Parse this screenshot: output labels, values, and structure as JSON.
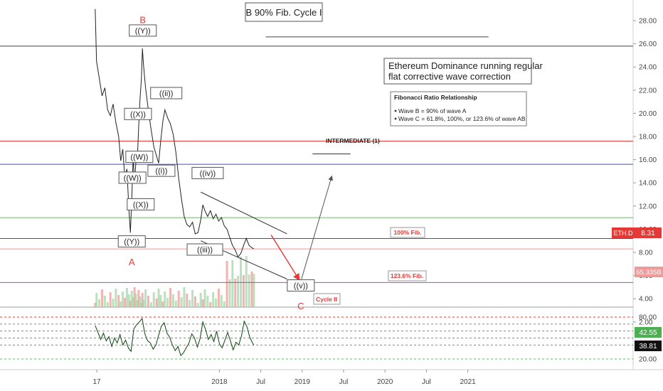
{
  "chart_data": {
    "type": "line",
    "symbol": "ETH.D",
    "title": "B 90%  Fib. Cycle I",
    "annotation_main": [
      "Ethereum Dominance running regular",
      "flat corrective wave correction"
    ],
    "fib_box": {
      "title": "Fibonacci Ratio Relationship",
      "items": [
        "Wave B = 90% of wave A",
        "Wave C = 61.8%, 100%, or 123.6% of wave AB"
      ]
    },
    "intermediate_label": "INTERMEDIATE (1)",
    "fib100_label": "100% Fib.",
    "fib1236_label": "123.6% Fib.",
    "cycle_label": "Cycle II",
    "price_axis": {
      "ticks": [
        "28.00",
        "26.00",
        "24.00",
        "22.00",
        "20.00",
        "18.00",
        "16.00",
        "14.00",
        "12.00",
        "10.00",
        "8.00",
        "6.00",
        "4.00",
        "2.00"
      ],
      "ylim": [
        1.3,
        29.5
      ]
    },
    "rsi_axis": {
      "ticks": [
        "80.00",
        "20.00"
      ],
      "ylim": [
        0,
        100
      ],
      "overbought": 80,
      "oversold": 20
    },
    "x_ticks": [
      "17",
      "2018",
      "Jul",
      "2019",
      "Jul",
      "2020",
      "Jul",
      "2021"
    ],
    "x_tick_months": [
      0,
      12,
      18,
      24,
      30,
      36,
      42,
      48
    ],
    "current_price": "8.31",
    "volume_badge": "65.335B",
    "rsi_value1": "42.55",
    "rsi_value2": "38.81",
    "horizontal_levels": [
      {
        "value": 25.8,
        "color": "#444444",
        "name": "B top"
      },
      {
        "value": 17.6,
        "color": "#e53935",
        "name": "red level"
      },
      {
        "value": 15.6,
        "color": "#3f51b5",
        "name": "blue level"
      },
      {
        "value": 11.0,
        "color": "#66bb6a",
        "name": "green level"
      },
      {
        "value": 9.2,
        "color": "#555555",
        "name": "100% Fib"
      },
      {
        "value": 8.3,
        "color": "#ef9a9a",
        "name": "current price"
      },
      {
        "value": 5.4,
        "color": "#ab47bc",
        "name": "123.6% Fib"
      }
    ],
    "wave_labels": [
      {
        "text": "B",
        "red": true,
        "month": 0.9,
        "value": 27.8
      },
      {
        "text": "((Y))",
        "month": 0.9,
        "value": 26.9
      },
      {
        "text": "((ii))",
        "month": 4.3,
        "value": 21.5
      },
      {
        "text": "((X))",
        "month": 0.2,
        "value": 19.7
      },
      {
        "text": "((W))",
        "month": 0.4,
        "value": 16.0
      },
      {
        "text": "((W))",
        "month": -0.6,
        "value": 14.2
      },
      {
        "text": "((i))",
        "month": 3.6,
        "value": 14.8
      },
      {
        "text": "((X))",
        "month": 0.6,
        "value": 11.9
      },
      {
        "text": "((Y))",
        "month": -0.7,
        "value": 8.7
      },
      {
        "text": "A",
        "red": true,
        "month": -0.7,
        "value": 6.9
      },
      {
        "text": "((iv))",
        "month": 10.3,
        "value": 14.6
      },
      {
        "text": "((iii))",
        "month": 9.9,
        "value": 8.0
      },
      {
        "text": "((v))",
        "month": 23.8,
        "value": 4.9
      },
      {
        "text": "C",
        "red": true,
        "month": 23.8,
        "value": 3.1
      }
    ],
    "price_series": [
      {
        "m": -6.0,
        "v": 29.0
      },
      {
        "m": -5.8,
        "v": 24.5
      },
      {
        "m": -5.4,
        "v": 23.0
      },
      {
        "m": -5.0,
        "v": 21.5
      },
      {
        "m": -4.6,
        "v": 22.2
      },
      {
        "m": -4.2,
        "v": 20.3
      },
      {
        "m": -3.8,
        "v": 19.8
      },
      {
        "m": -3.4,
        "v": 20.8
      },
      {
        "m": -3.0,
        "v": 19.2
      },
      {
        "m": -2.6,
        "v": 18.0
      },
      {
        "m": -2.3,
        "v": 15.9
      },
      {
        "m": -2.0,
        "v": 16.9
      },
      {
        "m": -1.7,
        "v": 14.4
      },
      {
        "m": -1.4,
        "v": 15.2
      },
      {
        "m": -1.1,
        "v": 11.6
      },
      {
        "m": -0.9,
        "v": 9.7
      },
      {
        "m": -0.7,
        "v": 12.6
      },
      {
        "m": -0.5,
        "v": 16.2
      },
      {
        "m": -0.3,
        "v": 14.0
      },
      {
        "m": -0.1,
        "v": 15.8
      },
      {
        "m": 0.1,
        "v": 15.9
      },
      {
        "m": 0.3,
        "v": 18.8
      },
      {
        "m": 0.5,
        "v": 21.2
      },
      {
        "m": 0.7,
        "v": 23.0
      },
      {
        "m": 0.85,
        "v": 25.6
      },
      {
        "m": 1.0,
        "v": 24.2
      },
      {
        "m": 1.3,
        "v": 22.2
      },
      {
        "m": 1.7,
        "v": 20.3
      },
      {
        "m": 2.1,
        "v": 18.6
      },
      {
        "m": 2.5,
        "v": 17.1
      },
      {
        "m": 2.9,
        "v": 16.3
      },
      {
        "m": 3.2,
        "v": 15.7
      },
      {
        "m": 3.5,
        "v": 17.6
      },
      {
        "m": 3.8,
        "v": 19.3
      },
      {
        "m": 4.1,
        "v": 20.3
      },
      {
        "m": 4.5,
        "v": 19.6
      },
      {
        "m": 4.9,
        "v": 19.1
      },
      {
        "m": 5.3,
        "v": 18.2
      },
      {
        "m": 5.7,
        "v": 16.6
      },
      {
        "m": 6.1,
        "v": 14.4
      },
      {
        "m": 6.5,
        "v": 12.6
      },
      {
        "m": 6.9,
        "v": 11.1
      },
      {
        "m": 7.3,
        "v": 10.4
      },
      {
        "m": 7.7,
        "v": 10.2
      },
      {
        "m": 8.1,
        "v": 10.6
      },
      {
        "m": 8.5,
        "v": 9.6
      },
      {
        "m": 8.9,
        "v": 9.7
      },
      {
        "m": 9.3,
        "v": 10.8
      },
      {
        "m": 9.6,
        "v": 12.1
      },
      {
        "m": 9.9,
        "v": 11.6
      },
      {
        "m": 10.3,
        "v": 11.1
      },
      {
        "m": 10.7,
        "v": 11.6
      },
      {
        "m": 11.1,
        "v": 10.9
      },
      {
        "m": 11.5,
        "v": 11.3
      },
      {
        "m": 11.9,
        "v": 10.7
      },
      {
        "m": 12.3,
        "v": 11.0
      },
      {
        "m": 12.7,
        "v": 10.3
      },
      {
        "m": 13.1,
        "v": 10.0
      },
      {
        "m": 13.5,
        "v": 9.3
      },
      {
        "m": 13.9,
        "v": 8.6
      },
      {
        "m": 14.3,
        "v": 8.2
      },
      {
        "m": 14.7,
        "v": 7.6
      },
      {
        "m": 15.1,
        "v": 7.9
      },
      {
        "m": 15.5,
        "v": 8.6
      },
      {
        "m": 15.9,
        "v": 9.2
      },
      {
        "m": 16.3,
        "v": 8.6
      },
      {
        "m": 16.7,
        "v": 8.4
      },
      {
        "m": 17.0,
        "v": 8.3
      }
    ],
    "rsi_series": [
      {
        "m": -6.0,
        "v": 68
      },
      {
        "m": -5.6,
        "v": 58
      },
      {
        "m": -5.2,
        "v": 48
      },
      {
        "m": -4.8,
        "v": 57
      },
      {
        "m": -4.4,
        "v": 46
      },
      {
        "m": -4.0,
        "v": 52
      },
      {
        "m": -3.6,
        "v": 38
      },
      {
        "m": -3.2,
        "v": 50
      },
      {
        "m": -2.8,
        "v": 43
      },
      {
        "m": -2.4,
        "v": 55
      },
      {
        "m": -2.0,
        "v": 40
      },
      {
        "m": -1.6,
        "v": 47
      },
      {
        "m": -1.2,
        "v": 36
      },
      {
        "m": -0.8,
        "v": 31
      },
      {
        "m": -0.4,
        "v": 63
      },
      {
        "m": 0.0,
        "v": 69
      },
      {
        "m": 0.4,
        "v": 73
      },
      {
        "m": 0.8,
        "v": 78
      },
      {
        "m": 1.2,
        "v": 56
      },
      {
        "m": 1.6,
        "v": 46
      },
      {
        "m": 2.0,
        "v": 43
      },
      {
        "m": 2.4,
        "v": 34
      },
      {
        "m": 2.8,
        "v": 40
      },
      {
        "m": 3.2,
        "v": 54
      },
      {
        "m": 3.6,
        "v": 67
      },
      {
        "m": 4.0,
        "v": 72
      },
      {
        "m": 4.4,
        "v": 57
      },
      {
        "m": 4.8,
        "v": 51
      },
      {
        "m": 5.2,
        "v": 40
      },
      {
        "m": 5.6,
        "v": 32
      },
      {
        "m": 6.0,
        "v": 38
      },
      {
        "m": 6.4,
        "v": 25
      },
      {
        "m": 6.8,
        "v": 29
      },
      {
        "m": 7.2,
        "v": 36
      },
      {
        "m": 7.6,
        "v": 43
      },
      {
        "m": 8.0,
        "v": 56
      },
      {
        "m": 8.4,
        "v": 50
      },
      {
        "m": 8.8,
        "v": 37
      },
      {
        "m": 9.2,
        "v": 49
      },
      {
        "m": 9.6,
        "v": 73
      },
      {
        "m": 10.0,
        "v": 62
      },
      {
        "m": 10.4,
        "v": 48
      },
      {
        "m": 10.8,
        "v": 55
      },
      {
        "m": 11.2,
        "v": 45
      },
      {
        "m": 11.6,
        "v": 60
      },
      {
        "m": 12.0,
        "v": 42
      },
      {
        "m": 12.4,
        "v": 36
      },
      {
        "m": 12.8,
        "v": 47
      },
      {
        "m": 13.2,
        "v": 58
      },
      {
        "m": 13.6,
        "v": 46
      },
      {
        "m": 14.0,
        "v": 33
      },
      {
        "m": 14.4,
        "v": 44
      },
      {
        "m": 14.8,
        "v": 40
      },
      {
        "m": 15.2,
        "v": 53
      },
      {
        "m": 15.6,
        "v": 74
      },
      {
        "m": 16.0,
        "v": 66
      },
      {
        "m": 16.4,
        "v": 51
      },
      {
        "m": 16.8,
        "v": 43
      },
      {
        "m": 17.0,
        "v": 40
      }
    ],
    "channel_upper": [
      {
        "m": 9.3,
        "v": 13.2
      },
      {
        "m": 21.8,
        "v": 9.6
      }
    ],
    "channel_lower": [
      {
        "m": 9.3,
        "v": 9.0
      },
      {
        "m": 21.8,
        "v": 5.7
      }
    ],
    "projection_down": [
      {
        "m": 19.5,
        "v": 9.5
      },
      {
        "m": 23.6,
        "v": 5.6
      }
    ],
    "projection_up": [
      {
        "m": 23.9,
        "v": 5.7
      },
      {
        "m": 28.3,
        "v": 14.6
      }
    ],
    "intermediate_line": [
      {
        "m": 25.5,
        "v": 16.5
      },
      {
        "m": 31.0,
        "v": 16.5
      }
    ],
    "top_grey_line": [
      {
        "m": 18.7,
        "v": 26.6
      },
      {
        "m": 51.0,
        "v": 26.6
      }
    ],
    "grid": false,
    "legend": "none"
  }
}
